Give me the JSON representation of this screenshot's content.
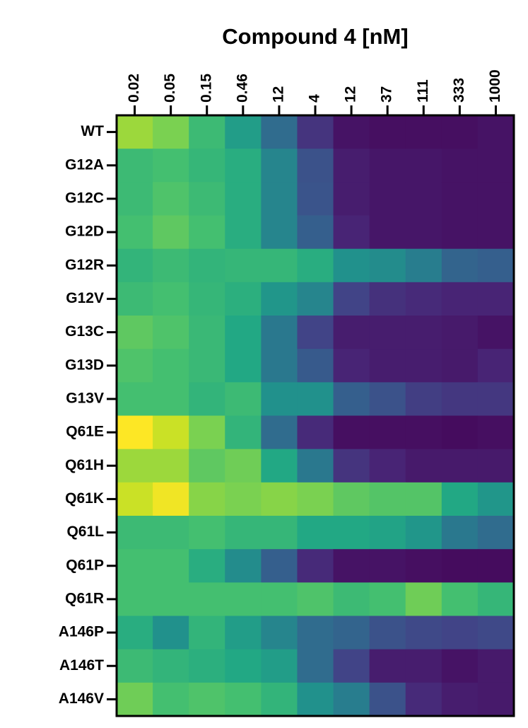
{
  "chart_data": {
    "type": "heatmap",
    "title": "Compound 4 [nM]",
    "colormap": "viridis",
    "columns": [
      "0.02",
      "0.05",
      "0.15",
      "0.46",
      "12",
      "4",
      "12",
      "37",
      "111",
      "333",
      "1000"
    ],
    "rows": [
      "WT",
      "G12A",
      "G12C",
      "G12D",
      "G12R",
      "G12V",
      "G13C",
      "G13D",
      "G13V",
      "Q61E",
      "Q61H",
      "Q61K",
      "Q61L",
      "Q61P",
      "Q61R",
      "A146P",
      "A146T",
      "A146V"
    ],
    "values": [
      [
        0.85,
        0.8,
        0.68,
        0.55,
        0.35,
        0.15,
        0.05,
        0.04,
        0.04,
        0.04,
        0.05
      ],
      [
        0.68,
        0.7,
        0.66,
        0.62,
        0.45,
        0.25,
        0.08,
        0.06,
        0.06,
        0.05,
        0.05
      ],
      [
        0.68,
        0.72,
        0.68,
        0.62,
        0.45,
        0.26,
        0.08,
        0.06,
        0.06,
        0.05,
        0.05
      ],
      [
        0.7,
        0.75,
        0.7,
        0.62,
        0.45,
        0.3,
        0.1,
        0.06,
        0.06,
        0.05,
        0.05
      ],
      [
        0.65,
        0.68,
        0.65,
        0.66,
        0.66,
        0.62,
        0.5,
        0.48,
        0.42,
        0.32,
        0.3
      ],
      [
        0.68,
        0.7,
        0.66,
        0.63,
        0.52,
        0.45,
        0.2,
        0.14,
        0.12,
        0.1,
        0.1
      ],
      [
        0.75,
        0.72,
        0.67,
        0.6,
        0.4,
        0.2,
        0.08,
        0.08,
        0.08,
        0.07,
        0.05
      ],
      [
        0.72,
        0.7,
        0.67,
        0.6,
        0.4,
        0.28,
        0.1,
        0.08,
        0.08,
        0.07,
        0.1
      ],
      [
        0.7,
        0.7,
        0.65,
        0.68,
        0.5,
        0.5,
        0.3,
        0.25,
        0.18,
        0.16,
        0.16
      ],
      [
        1.0,
        0.92,
        0.8,
        0.65,
        0.35,
        0.12,
        0.04,
        0.04,
        0.04,
        0.03,
        0.04
      ],
      [
        0.85,
        0.85,
        0.75,
        0.78,
        0.6,
        0.4,
        0.15,
        0.1,
        0.07,
        0.07,
        0.07
      ],
      [
        0.92,
        0.98,
        0.82,
        0.8,
        0.82,
        0.8,
        0.75,
        0.73,
        0.73,
        0.6,
        0.52
      ],
      [
        0.68,
        0.68,
        0.7,
        0.66,
        0.66,
        0.6,
        0.6,
        0.58,
        0.52,
        0.4,
        0.35
      ],
      [
        0.7,
        0.7,
        0.62,
        0.48,
        0.3,
        0.12,
        0.05,
        0.05,
        0.04,
        0.03,
        0.03
      ],
      [
        0.7,
        0.7,
        0.7,
        0.7,
        0.7,
        0.72,
        0.68,
        0.7,
        0.78,
        0.7,
        0.66
      ],
      [
        0.62,
        0.5,
        0.65,
        0.55,
        0.45,
        0.35,
        0.32,
        0.25,
        0.22,
        0.2,
        0.22
      ],
      [
        0.68,
        0.65,
        0.63,
        0.6,
        0.55,
        0.35,
        0.2,
        0.08,
        0.08,
        0.05,
        0.07
      ],
      [
        0.78,
        0.7,
        0.72,
        0.7,
        0.65,
        0.5,
        0.42,
        0.25,
        0.12,
        0.08,
        0.07
      ]
    ]
  }
}
